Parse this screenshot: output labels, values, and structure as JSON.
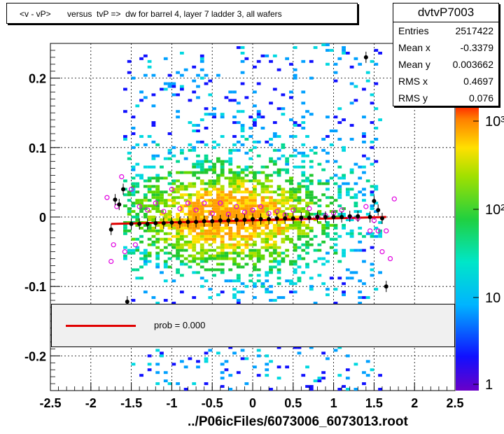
{
  "chart_data": {
    "type": "scatter",
    "title": "<v - vP>       versus  tvP =>  dw for barrel 4, layer 7 ladder 3, all wafers",
    "xlim": [
      -2.5,
      2.5
    ],
    "ylim": [
      -0.25,
      0.25
    ],
    "x_ticks": [
      "-2.5",
      "-2",
      "-1.5",
      "-1",
      "-0.5",
      "0",
      "0.5",
      "1",
      "1.5",
      "2",
      "2.5"
    ],
    "y_ticks": [
      "-0.2",
      "-0.1",
      "0",
      "0.1",
      "0.2"
    ],
    "z_ticks": [
      "1",
      "10",
      "10²",
      "10³"
    ],
    "grid": true,
    "stats": {
      "name": "dvtvP7003",
      "rows": [
        {
          "label": "Entries",
          "value": "2517422"
        },
        {
          "label": "Mean x",
          "value": "-0.3379"
        },
        {
          "label": "Mean y",
          "value": "0.003662"
        },
        {
          "label": "RMS x",
          "value": "0.4697"
        },
        {
          "label": "RMS y",
          "value": "0.076"
        }
      ]
    },
    "fit_line": {
      "x": [
        -1.75,
        1.65
      ],
      "y": [
        -0.01,
        0.0
      ]
    },
    "legend": {
      "label": "prob = 0.000"
    },
    "profile_black": {
      "x": [
        -1.75,
        -1.7,
        -1.65,
        -1.6,
        -1.55,
        -1.5,
        -1.4,
        -1.3,
        -1.2,
        -1.1,
        -1.0,
        -0.9,
        -0.8,
        -0.7,
        -0.6,
        -0.5,
        -0.4,
        -0.3,
        -0.2,
        -0.1,
        0.0,
        0.1,
        0.2,
        0.3,
        0.4,
        0.5,
        0.6,
        0.7,
        0.8,
        0.9,
        1.0,
        1.1,
        1.2,
        1.3,
        1.4,
        1.45,
        1.5,
        1.55,
        1.6,
        1.65
      ],
      "y": [
        -0.018,
        0.025,
        0.018,
        0.04,
        -0.122,
        -0.01,
        -0.01,
        -0.01,
        -0.009,
        -0.009,
        -0.008,
        -0.008,
        -0.007,
        -0.007,
        -0.006,
        -0.006,
        -0.005,
        -0.005,
        -0.004,
        -0.004,
        -0.003,
        -0.003,
        -0.003,
        -0.002,
        -0.002,
        -0.002,
        -0.001,
        -0.001,
        0.0,
        0.0,
        0.0,
        0.0,
        0.001,
        0.001,
        0.23,
        0.0,
        0.023,
        0.01,
        -0.002,
        -0.1
      ]
    },
    "profile_magenta": {
      "x": [
        -1.8,
        -1.75,
        -1.72,
        -1.68,
        -1.62,
        -1.58,
        -1.5,
        -1.45,
        -1.4,
        -1.3,
        -1.2,
        -1.1,
        -1.0,
        -0.9,
        -0.8,
        -0.7,
        -0.6,
        -0.5,
        -0.4,
        -0.3,
        -0.2,
        -0.1,
        0.0,
        0.1,
        0.2,
        0.3,
        0.4,
        0.5,
        0.6,
        0.7,
        0.8,
        0.9,
        1.0,
        1.1,
        1.2,
        1.3,
        1.4,
        1.45,
        1.5,
        1.55,
        1.6,
        1.65,
        1.7,
        1.75
      ],
      "y": [
        0.028,
        -0.064,
        -0.04,
        0.015,
        0.058,
        -0.05,
        0.04,
        -0.04,
        0.015,
        0.01,
        0.02,
        0.008,
        0.04,
        0.012,
        0.02,
        0.01,
        0.02,
        0.005,
        0.02,
        0.004,
        0.015,
        0.007,
        0.01,
        0.015,
        0.005,
        0.008,
        0.003,
        0.01,
        -0.002,
        0.012,
        0.0,
        0.002,
        0.006,
        0.01,
        0.0,
        -0.002,
        0.015,
        -0.02,
        -0.005,
        -0.02,
        -0.05,
        -0.02,
        -0.06,
        0.026
      ]
    }
  },
  "footer": "../P06icFiles/6073006_6073013.root"
}
